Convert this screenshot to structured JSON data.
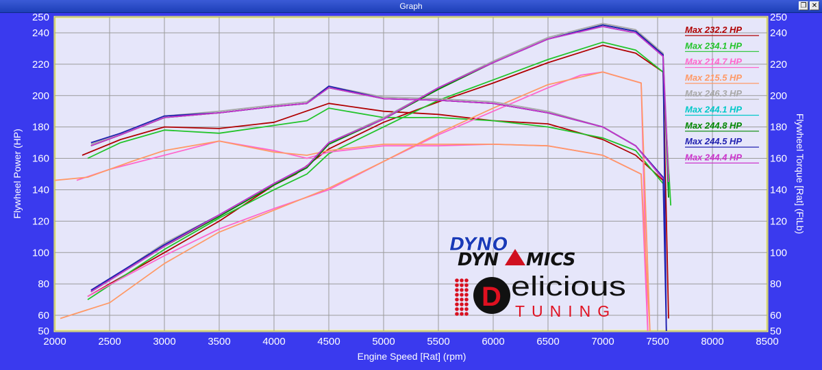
{
  "window": {
    "title": "Graph"
  },
  "logo": {
    "dyno_line1": "DYNO",
    "dyno_line2a": "DYN",
    "dyno_line2b": "MICS",
    "brand_word": "elicious",
    "brand_initial": "D",
    "brand_sub": "TUNING"
  },
  "chart_data": {
    "type": "line",
    "xlabel": "Engine Speed [Rat] (rpm)",
    "ylabel_left": "Flywheel Power (HP)",
    "ylabel_right": "Flywheel Torque [Rat] (FtLb)",
    "xlim": [
      2000,
      8500
    ],
    "ylim": [
      50,
      250
    ],
    "x_ticks": [
      2000,
      2500,
      3000,
      3500,
      4000,
      4500,
      5000,
      5500,
      6000,
      6500,
      7000,
      7500,
      8000,
      8500
    ],
    "y_ticks": [
      50,
      60,
      80,
      100,
      120,
      140,
      160,
      180,
      200,
      220,
      240,
      250
    ],
    "grid": true,
    "legend_position": "top-right",
    "series": [
      {
        "name": "Max 232.2 HP",
        "color": "#b00000",
        "power": [
          [
            2300,
            72
          ],
          [
            3000,
            100
          ],
          [
            3500,
            120
          ],
          [
            4000,
            143
          ],
          [
            4200,
            150
          ],
          [
            4500,
            166
          ],
          [
            5000,
            183
          ],
          [
            5500,
            196
          ],
          [
            6000,
            208
          ],
          [
            6500,
            221
          ],
          [
            7000,
            232
          ],
          [
            7300,
            227
          ],
          [
            7550,
            215
          ],
          [
            7600,
            58
          ]
        ],
        "torque": [
          [
            2250,
            162
          ],
          [
            2600,
            172
          ],
          [
            3000,
            180
          ],
          [
            3500,
            179
          ],
          [
            4000,
            183
          ],
          [
            4500,
            195
          ],
          [
            5000,
            190
          ],
          [
            5500,
            188
          ],
          [
            6000,
            184
          ],
          [
            6500,
            182
          ],
          [
            7000,
            172
          ],
          [
            7300,
            162
          ],
          [
            7550,
            146
          ]
        ]
      },
      {
        "name": "Max 234.1 HP",
        "color": "#22c42a",
        "power": [
          [
            2300,
            70
          ],
          [
            3000,
            102
          ],
          [
            3500,
            122
          ],
          [
            4000,
            140
          ],
          [
            4300,
            150
          ],
          [
            4500,
            163
          ],
          [
            5000,
            180
          ],
          [
            5500,
            197
          ],
          [
            6000,
            210
          ],
          [
            6500,
            223
          ],
          [
            7000,
            234
          ],
          [
            7300,
            229
          ],
          [
            7550,
            215
          ],
          [
            7620,
            130
          ]
        ],
        "torque": [
          [
            2300,
            160
          ],
          [
            2600,
            170
          ],
          [
            3000,
            178
          ],
          [
            3500,
            176
          ],
          [
            4000,
            181
          ],
          [
            4300,
            184
          ],
          [
            4500,
            192
          ],
          [
            5000,
            186
          ],
          [
            5500,
            186
          ],
          [
            6000,
            184
          ],
          [
            6500,
            180
          ],
          [
            7000,
            173
          ],
          [
            7300,
            165
          ],
          [
            7550,
            144
          ]
        ]
      },
      {
        "name": "Max 214.7 HP",
        "color": "#ff66cc",
        "power": [
          [
            2300,
            72
          ],
          [
            3000,
            98
          ],
          [
            3500,
            115
          ],
          [
            4000,
            128
          ],
          [
            4500,
            140
          ],
          [
            5000,
            158
          ],
          [
            5500,
            175
          ],
          [
            6000,
            190
          ],
          [
            6500,
            205
          ],
          [
            6800,
            213
          ],
          [
            7000,
            215
          ],
          [
            7350,
            208
          ],
          [
            7410,
            50
          ]
        ],
        "torque": [
          [
            2200,
            146
          ],
          [
            2500,
            153
          ],
          [
            3000,
            162
          ],
          [
            3500,
            171
          ],
          [
            4000,
            165
          ],
          [
            4300,
            160
          ],
          [
            4500,
            164
          ],
          [
            5000,
            168
          ],
          [
            5500,
            168
          ],
          [
            6000,
            169
          ],
          [
            6500,
            168
          ],
          [
            7000,
            162
          ],
          [
            7350,
            150
          ],
          [
            7410,
            50
          ]
        ]
      },
      {
        "name": "Max 215.5 HP",
        "color": "#ff9966",
        "power": [
          [
            2050,
            58
          ],
          [
            2500,
            68
          ],
          [
            3000,
            93
          ],
          [
            3500,
            113
          ],
          [
            4000,
            127
          ],
          [
            4500,
            141
          ],
          [
            5000,
            158
          ],
          [
            5500,
            176
          ],
          [
            6000,
            192
          ],
          [
            6500,
            207
          ],
          [
            7000,
            215
          ],
          [
            7350,
            208
          ],
          [
            7430,
            50
          ]
        ],
        "torque": [
          [
            2000,
            146
          ],
          [
            2300,
            148
          ],
          [
            2700,
            158
          ],
          [
            3000,
            165
          ],
          [
            3500,
            171
          ],
          [
            4000,
            164
          ],
          [
            4300,
            162
          ],
          [
            4500,
            165
          ],
          [
            5000,
            169
          ],
          [
            5500,
            169
          ],
          [
            6000,
            169
          ],
          [
            6500,
            168
          ],
          [
            7000,
            162
          ],
          [
            7350,
            150
          ],
          [
            7430,
            50
          ]
        ]
      },
      {
        "name": "Max 246.3 HP",
        "color": "#a8a8a8",
        "power": [
          [
            2330,
            75
          ],
          [
            3000,
            106
          ],
          [
            3500,
            124
          ],
          [
            4000,
            144
          ],
          [
            4300,
            155
          ],
          [
            4500,
            170
          ],
          [
            5000,
            186
          ],
          [
            5500,
            205
          ],
          [
            6000,
            222
          ],
          [
            6500,
            237
          ],
          [
            7000,
            246
          ],
          [
            7300,
            242
          ],
          [
            7550,
            227
          ],
          [
            7600,
            150
          ]
        ],
        "torque": [
          [
            2330,
            169
          ],
          [
            2600,
            176
          ],
          [
            3000,
            187
          ],
          [
            3500,
            190
          ],
          [
            4000,
            194
          ],
          [
            4300,
            196
          ],
          [
            4500,
            206
          ],
          [
            5000,
            199
          ],
          [
            5500,
            198
          ],
          [
            6000,
            196
          ],
          [
            6500,
            190
          ],
          [
            7000,
            180
          ],
          [
            7300,
            168
          ],
          [
            7550,
            148
          ]
        ]
      },
      {
        "name": "Max 244.1 HP",
        "color": "#00c8c8",
        "power": [
          [
            2330,
            75
          ],
          [
            3000,
            104
          ],
          [
            3500,
            124
          ],
          [
            4000,
            144
          ],
          [
            4300,
            155
          ],
          [
            4500,
            170
          ],
          [
            5000,
            185
          ],
          [
            5500,
            205
          ],
          [
            6000,
            221
          ],
          [
            6500,
            236
          ],
          [
            7000,
            244
          ],
          [
            7300,
            240
          ],
          [
            7550,
            225
          ],
          [
            7600,
            140
          ]
        ],
        "torque": [
          [
            2330,
            168
          ],
          [
            2600,
            175
          ],
          [
            3000,
            186
          ],
          [
            3500,
            189
          ],
          [
            4000,
            193
          ],
          [
            4300,
            195
          ],
          [
            4500,
            205
          ],
          [
            5000,
            198
          ],
          [
            5500,
            197
          ],
          [
            6000,
            195
          ],
          [
            6500,
            189
          ],
          [
            7000,
            180
          ],
          [
            7300,
            168
          ],
          [
            7550,
            147
          ]
        ]
      },
      {
        "name": "Max 244.8 HP",
        "color": "#008800",
        "power": [
          [
            2330,
            75
          ],
          [
            3000,
            104
          ],
          [
            3500,
            123
          ],
          [
            4000,
            143
          ],
          [
            4300,
            154
          ],
          [
            4500,
            169
          ],
          [
            5000,
            185
          ],
          [
            5500,
            204
          ],
          [
            6000,
            221
          ],
          [
            6500,
            236
          ],
          [
            7000,
            245
          ],
          [
            7300,
            241
          ],
          [
            7550,
            226
          ],
          [
            7600,
            135
          ]
        ],
        "torque": [
          [
            2330,
            168
          ],
          [
            2600,
            175
          ],
          [
            3000,
            186
          ],
          [
            3500,
            189
          ],
          [
            4000,
            193
          ],
          [
            4300,
            195
          ],
          [
            4500,
            205
          ],
          [
            5000,
            198
          ],
          [
            5500,
            197
          ],
          [
            6000,
            195
          ],
          [
            6500,
            189
          ],
          [
            7000,
            180
          ],
          [
            7300,
            168
          ],
          [
            7550,
            147
          ]
        ]
      },
      {
        "name": "Max 244.5 HP",
        "color": "#2020b0",
        "power": [
          [
            2330,
            76
          ],
          [
            3000,
            105
          ],
          [
            3500,
            124
          ],
          [
            4000,
            144
          ],
          [
            4300,
            155
          ],
          [
            4500,
            170
          ],
          [
            5000,
            185
          ],
          [
            5500,
            205
          ],
          [
            6000,
            221
          ],
          [
            6500,
            236
          ],
          [
            7000,
            245
          ],
          [
            7300,
            241
          ],
          [
            7550,
            226
          ],
          [
            7580,
            50
          ]
        ],
        "torque": [
          [
            2330,
            170
          ],
          [
            2600,
            176
          ],
          [
            3000,
            187
          ],
          [
            3500,
            189
          ],
          [
            4000,
            193
          ],
          [
            4300,
            195
          ],
          [
            4500,
            206
          ],
          [
            5000,
            198
          ],
          [
            5500,
            197
          ],
          [
            6000,
            195
          ],
          [
            6500,
            189
          ],
          [
            7000,
            180
          ],
          [
            7300,
            168
          ],
          [
            7550,
            148
          ],
          [
            7580,
            50
          ]
        ]
      },
      {
        "name": "Max 244.4 HP",
        "color": "#cc33cc",
        "power": [
          [
            2330,
            75
          ],
          [
            3000,
            104
          ],
          [
            3500,
            124
          ],
          [
            4000,
            144
          ],
          [
            4300,
            155
          ],
          [
            4500,
            170
          ],
          [
            5000,
            185
          ],
          [
            5500,
            205
          ],
          [
            6000,
            221
          ],
          [
            6500,
            236
          ],
          [
            7000,
            244
          ],
          [
            7300,
            240
          ],
          [
            7550,
            225
          ],
          [
            7600,
            145
          ]
        ],
        "torque": [
          [
            2330,
            168
          ],
          [
            2600,
            175
          ],
          [
            3000,
            186
          ],
          [
            3500,
            189
          ],
          [
            4000,
            193
          ],
          [
            4300,
            195
          ],
          [
            4500,
            205
          ],
          [
            5000,
            198
          ],
          [
            5500,
            197
          ],
          [
            6000,
            195
          ],
          [
            6500,
            189
          ],
          [
            7000,
            180
          ],
          [
            7300,
            168
          ],
          [
            7550,
            147
          ]
        ]
      }
    ]
  }
}
